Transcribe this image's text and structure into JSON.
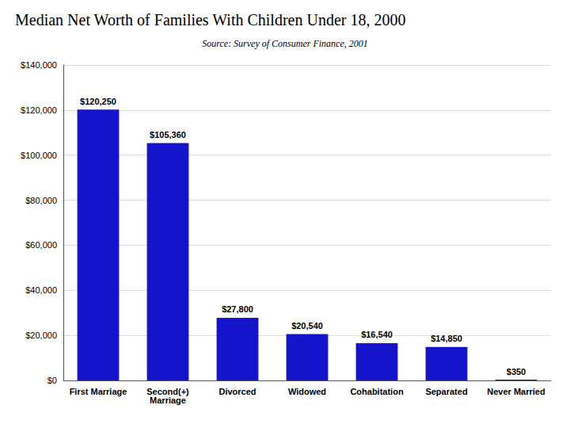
{
  "chart_data": {
    "type": "bar",
    "title": "Median Net Worth of Families With Children Under 18, 2000",
    "subtitle": "Source: Survey of Consumer Finance, 2001",
    "categories": [
      "First Marriage",
      "Second(+)\nMarriage",
      "Divorced",
      "Widowed",
      "Cohabitation",
      "Separated",
      "Never Married"
    ],
    "values": [
      120250,
      105360,
      27800,
      20540,
      16540,
      14850,
      350
    ],
    "value_labels": [
      "$120,250",
      "$105,360",
      "$27,800",
      "$20,540",
      "$16,540",
      "$14,850",
      "$350"
    ],
    "data_labels": true,
    "color": "#1414cc",
    "ylim": [
      0,
      140000
    ],
    "yticks": [
      {
        "value": 0,
        "label": "$0"
      },
      {
        "value": 20000,
        "label": "$20,000"
      },
      {
        "value": 40000,
        "label": "$40,000"
      },
      {
        "value": 60000,
        "label": "$60,000"
      },
      {
        "value": 80000,
        "label": "$80,000"
      },
      {
        "value": 100000,
        "label": "$100,000"
      },
      {
        "value": 120000,
        "label": "$120,000"
      },
      {
        "value": 140000,
        "label": "$140,000"
      }
    ],
    "grid": true
  }
}
